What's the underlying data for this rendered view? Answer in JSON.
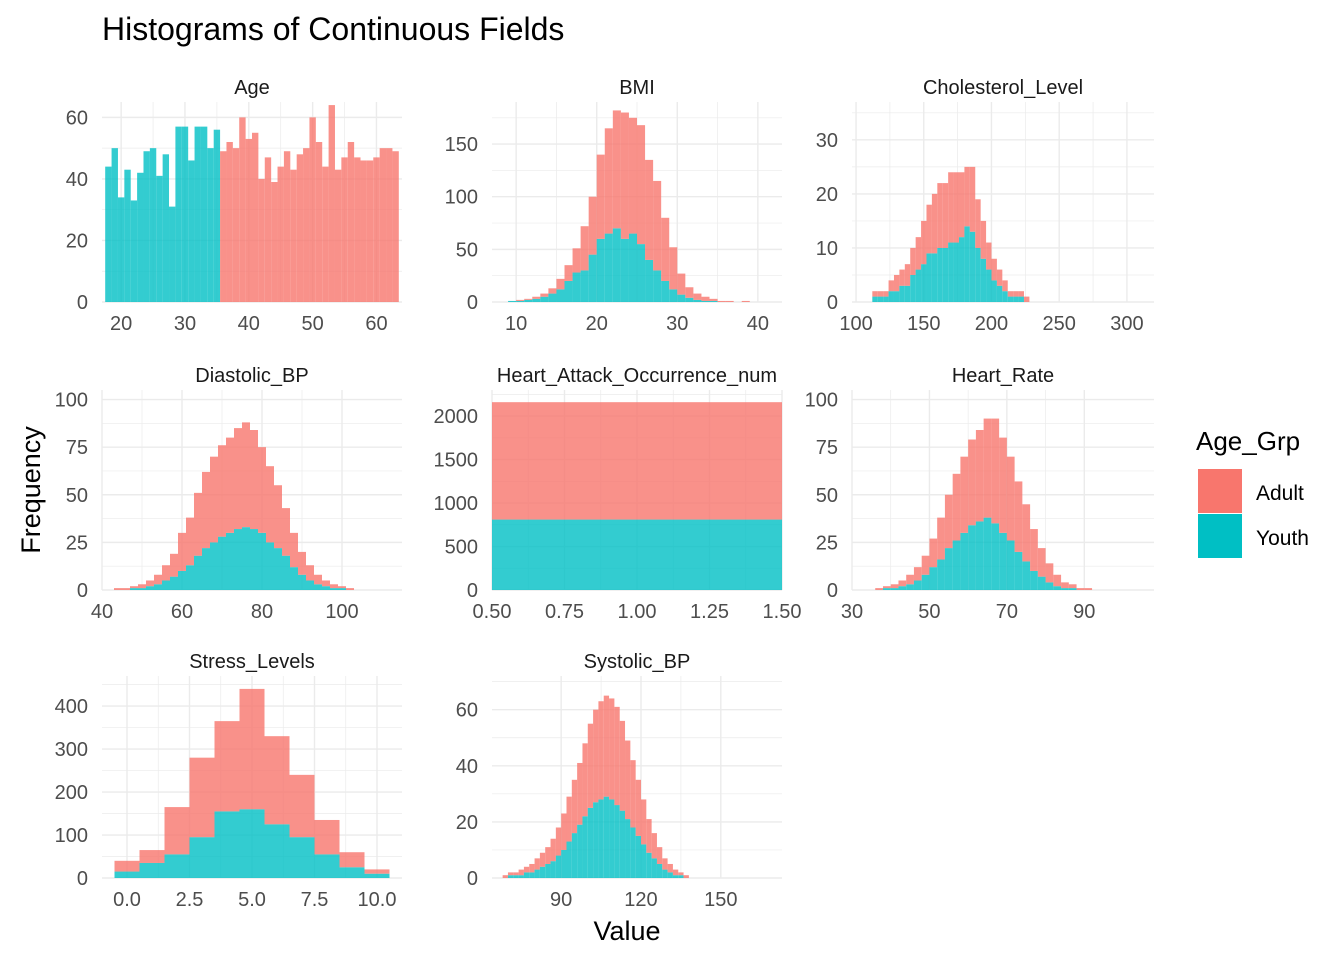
{
  "title": "Histograms of Continuous Fields",
  "xlabel": "Value",
  "ylabel": "Frequency",
  "legend": {
    "title": "Age_Grp",
    "placement": "right",
    "items": [
      {
        "label": "Adult",
        "color": "#F8766D"
      },
      {
        "label": "Youth",
        "color": "#00BFC4"
      }
    ]
  },
  "colors": {
    "Adult": "#F8766D",
    "Youth": "#00BFC4",
    "grid": "#EBEBEB",
    "text": "#4D4D4D"
  },
  "chart_data": [
    {
      "type": "bar",
      "stacking": "stacked-histogram",
      "title": "Age",
      "xlim": [
        17,
        64
      ],
      "ylim": [
        0,
        65
      ],
      "xticks": [
        20,
        30,
        40,
        50,
        60
      ],
      "yticks": [
        0,
        20,
        40,
        60
      ],
      "bin_start": 17.5,
      "bin_width": 1,
      "series": [
        {
          "name": "Youth",
          "values": [
            44,
            50,
            34,
            43,
            33,
            42,
            49,
            50,
            41,
            48,
            31,
            57,
            57,
            46,
            57,
            57,
            50,
            56,
            0,
            0,
            0,
            0,
            0,
            0,
            0,
            0,
            0,
            0,
            0,
            0,
            0,
            0,
            0,
            0,
            0,
            0,
            0,
            0,
            0,
            0,
            0,
            0,
            0,
            0,
            0,
            0
          ]
        },
        {
          "name": "Adult",
          "values": [
            0,
            0,
            0,
            0,
            0,
            0,
            0,
            0,
            0,
            0,
            0,
            0,
            0,
            0,
            0,
            0,
            0,
            0,
            49,
            52,
            50,
            60,
            53,
            55,
            40,
            47,
            39,
            44,
            49,
            43,
            48,
            50,
            60,
            52,
            44,
            64,
            43,
            47,
            52,
            47,
            46,
            46,
            47,
            50,
            50,
            49
          ]
        }
      ]
    },
    {
      "type": "bar",
      "stacking": "stacked-histogram",
      "title": "BMI",
      "xlim": [
        7,
        43
      ],
      "ylim": [
        0,
        190
      ],
      "xticks": [
        10,
        20,
        30,
        40
      ],
      "yticks": [
        0,
        50,
        100,
        150
      ],
      "bin_start": 9,
      "bin_width": 1,
      "series": [
        {
          "name": "Youth",
          "values": [
            1,
            1,
            2,
            3,
            5,
            8,
            12,
            20,
            28,
            30,
            45,
            60,
            65,
            70,
            60,
            65,
            55,
            40,
            30,
            20,
            12,
            7,
            4,
            2,
            1,
            1,
            0,
            0,
            0,
            0,
            0,
            0,
            0,
            0,
            0
          ]
        },
        {
          "name": "Adult",
          "values": [
            0,
            1,
            1,
            2,
            3,
            5,
            10,
            15,
            23,
            42,
            55,
            80,
            100,
            112,
            120,
            110,
            113,
            95,
            85,
            60,
            40,
            20,
            10,
            6,
            4,
            2,
            1,
            1,
            0,
            1,
            0,
            0,
            0,
            0,
            0
          ]
        }
      ]
    },
    {
      "type": "bar",
      "stacking": "stacked-histogram",
      "title": "Cholesterol_Level",
      "xlim": [
        97,
        320
      ],
      "ylim": [
        0,
        37
      ],
      "xticks": [
        100,
        150,
        200,
        250,
        300
      ],
      "yticks": [
        0,
        10,
        20,
        30
      ],
      "bin_start": 100,
      "bin_width": 4,
      "series": [
        {
          "name": "Youth",
          "values": [
            0,
            0,
            0,
            1,
            1,
            1,
            2,
            2,
            3,
            3,
            5,
            6,
            7,
            9,
            9,
            10,
            10,
            11,
            11,
            12,
            14,
            13,
            10,
            8,
            6,
            4,
            3,
            2,
            1,
            1,
            1,
            0,
            0,
            0,
            0,
            0,
            0,
            0,
            0,
            0,
            0,
            0,
            0,
            0,
            0,
            0,
            0,
            0,
            0,
            0,
            0,
            0,
            0,
            0
          ]
        },
        {
          "name": "Adult",
          "values": [
            0,
            0,
            0,
            1,
            1,
            1,
            2,
            3,
            3,
            4,
            5,
            6,
            8,
            9,
            11,
            12,
            12,
            13,
            13,
            12,
            11,
            12,
            9,
            7,
            5,
            4,
            3,
            2,
            1,
            1,
            1,
            1,
            0,
            0,
            0,
            0,
            0,
            0,
            0,
            0,
            0,
            0,
            0,
            0,
            0,
            0,
            0,
            0,
            0,
            0,
            0,
            0,
            0,
            0
          ]
        }
      ]
    },
    {
      "type": "bar",
      "stacking": "stacked-histogram",
      "title": "Diastolic_BP",
      "xlim": [
        40,
        115
      ],
      "ylim": [
        0,
        105
      ],
      "xticks": [
        40,
        60,
        80,
        100
      ],
      "yticks": [
        0,
        25,
        50,
        75,
        100
      ],
      "bin_start": 43,
      "bin_width": 2,
      "series": [
        {
          "name": "Youth",
          "values": [
            0,
            0,
            1,
            1,
            2,
            3,
            5,
            7,
            10,
            13,
            18,
            22,
            25,
            28,
            30,
            32,
            33,
            32,
            30,
            25,
            22,
            18,
            12,
            8,
            5,
            3,
            2,
            1,
            1,
            0,
            0,
            0,
            0,
            0,
            0,
            0,
            0
          ]
        },
        {
          "name": "Adult",
          "values": [
            1,
            1,
            1,
            2,
            3,
            5,
            8,
            12,
            20,
            25,
            33,
            40,
            45,
            48,
            50,
            53,
            55,
            52,
            45,
            40,
            33,
            25,
            18,
            12,
            8,
            5,
            3,
            2,
            1,
            1,
            0,
            0,
            0,
            0,
            0,
            0,
            0
          ]
        }
      ]
    },
    {
      "type": "bar",
      "stacking": "stacked-histogram",
      "title": "Heart_Attack_Occurrence_num",
      "xlim": [
        0.5,
        1.5
      ],
      "ylim": [
        0,
        2300
      ],
      "xticks": [
        0.5,
        0.75,
        1.0,
        1.25,
        1.5
      ],
      "xtick_labels": [
        "0.50",
        "0.75",
        "1.00",
        "1.25",
        "1.50"
      ],
      "yticks": [
        0,
        500,
        1000,
        1500,
        2000
      ],
      "bin_start": 0.5,
      "bin_width": 1,
      "series": [
        {
          "name": "Youth",
          "values": [
            810
          ]
        },
        {
          "name": "Adult",
          "values": [
            1350
          ]
        }
      ]
    },
    {
      "type": "bar",
      "stacking": "stacked-histogram",
      "title": "Heart_Rate",
      "xlim": [
        30,
        108
      ],
      "ylim": [
        0,
        105
      ],
      "xticks": [
        30,
        50,
        70,
        90
      ],
      "yticks": [
        0,
        25,
        50,
        75,
        100
      ],
      "bin_start": 34,
      "bin_width": 2,
      "series": [
        {
          "name": "Youth",
          "values": [
            0,
            0,
            1,
            1,
            2,
            3,
            5,
            8,
            12,
            16,
            22,
            26,
            30,
            34,
            36,
            38,
            35,
            30,
            26,
            20,
            15,
            10,
            7,
            4,
            2,
            1,
            1,
            0,
            0,
            0,
            0,
            0,
            0,
            0,
            0,
            0,
            0
          ]
        },
        {
          "name": "Adult",
          "values": [
            0,
            1,
            1,
            2,
            3,
            5,
            7,
            10,
            15,
            22,
            28,
            35,
            40,
            45,
            48,
            52,
            55,
            50,
            44,
            37,
            30,
            22,
            15,
            10,
            6,
            3,
            2,
            1,
            1,
            0,
            0,
            0,
            0,
            0,
            0,
            0,
            0
          ]
        }
      ]
    },
    {
      "type": "bar",
      "stacking": "stacked-histogram",
      "title": "Stress_Levels",
      "xlim": [
        -1,
        11
      ],
      "ylim": [
        0,
        470
      ],
      "xticks": [
        0,
        2.5,
        5.0,
        7.5,
        10.0
      ],
      "xtick_labels": [
        "0.0",
        "2.5",
        "5.0",
        "7.5",
        "10.0"
      ],
      "yticks": [
        0,
        100,
        200,
        300,
        400
      ],
      "bin_start": -0.5,
      "bin_width": 1,
      "series": [
        {
          "name": "Youth",
          "values": [
            15,
            35,
            55,
            95,
            155,
            160,
            125,
            95,
            55,
            25,
            10
          ]
        },
        {
          "name": "Adult",
          "values": [
            25,
            30,
            110,
            185,
            210,
            280,
            205,
            145,
            80,
            35,
            10
          ]
        }
      ]
    },
    {
      "type": "bar",
      "stacking": "stacked-histogram",
      "title": "Systolic_BP",
      "xlim": [
        64,
        173
      ],
      "ylim": [
        0,
        72
      ],
      "xticks": [
        90,
        120,
        150
      ],
      "yticks": [
        0,
        20,
        40,
        60
      ],
      "bin_start": 66,
      "bin_width": 2,
      "series": [
        {
          "name": "Youth",
          "values": [
            0,
            0,
            1,
            1,
            1,
            2,
            2,
            3,
            4,
            5,
            6,
            8,
            10,
            13,
            16,
            19,
            22,
            25,
            27,
            28,
            29,
            28,
            26,
            24,
            21,
            18,
            15,
            12,
            9,
            7,
            5,
            3,
            2,
            1,
            1,
            0,
            0,
            0,
            0,
            0,
            0,
            0,
            0,
            0,
            0,
            0,
            0,
            0,
            0,
            0,
            0,
            0,
            0,
            0
          ]
        },
        {
          "name": "Adult",
          "values": [
            0,
            1,
            1,
            1,
            2,
            2,
            3,
            4,
            5,
            6,
            8,
            10,
            13,
            16,
            19,
            22,
            26,
            30,
            33,
            35,
            36,
            36,
            35,
            32,
            28,
            24,
            20,
            16,
            12,
            9,
            6,
            4,
            3,
            2,
            1,
            1,
            0,
            0,
            0,
            0,
            0,
            0,
            0,
            0,
            0,
            0,
            0,
            0,
            0,
            0,
            0,
            0,
            0,
            0
          ]
        }
      ]
    }
  ]
}
